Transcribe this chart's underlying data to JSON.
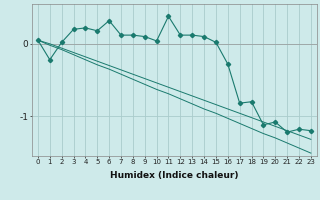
{
  "xlabel": "Humidex (Indice chaleur)",
  "ylabel": "",
  "background_color": "#ceeaea",
  "line_color": "#1a7a6e",
  "grid_color": "#aacccc",
  "x_data": [
    0,
    1,
    2,
    3,
    4,
    5,
    6,
    7,
    8,
    9,
    10,
    11,
    12,
    13,
    14,
    15,
    16,
    17,
    18,
    19,
    20,
    21,
    22,
    23
  ],
  "series1": [
    0.05,
    -0.22,
    0.02,
    0.2,
    0.22,
    0.18,
    0.32,
    0.12,
    0.12,
    0.1,
    0.04,
    0.38,
    0.12,
    0.12,
    0.1,
    0.02,
    -0.28,
    -0.82,
    -0.8,
    -1.12,
    -1.08,
    -1.22,
    -1.18,
    -1.2
  ],
  "series2": [
    0.05,
    -0.02,
    -0.08,
    -0.15,
    -0.22,
    -0.29,
    -0.35,
    -0.42,
    -0.49,
    -0.56,
    -0.63,
    -0.69,
    -0.76,
    -0.83,
    -0.9,
    -0.96,
    -1.03,
    -1.1,
    -1.17,
    -1.24,
    -1.3,
    -1.37,
    -1.44,
    -1.51
  ],
  "series3": [
    0.05,
    0.0,
    -0.06,
    -0.12,
    -0.18,
    -0.24,
    -0.3,
    -0.36,
    -0.42,
    -0.48,
    -0.54,
    -0.6,
    -0.66,
    -0.72,
    -0.78,
    -0.84,
    -0.9,
    -0.96,
    -1.02,
    -1.08,
    -1.14,
    -1.2,
    -1.26,
    -1.32
  ],
  "ylim": [
    -1.55,
    0.55
  ],
  "xlim": [
    -0.5,
    23.5
  ],
  "yticks": [
    0,
    -1
  ],
  "xticks": [
    0,
    1,
    2,
    3,
    4,
    5,
    6,
    7,
    8,
    9,
    10,
    11,
    12,
    13,
    14,
    15,
    16,
    17,
    18,
    19,
    20,
    21,
    22,
    23
  ],
  "xtick_fontsize": 5.0,
  "ytick_fontsize": 6.5,
  "xlabel_fontsize": 6.5
}
